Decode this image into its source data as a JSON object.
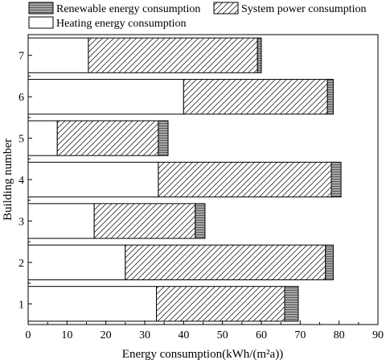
{
  "chart_data": {
    "type": "bar",
    "orientation": "horizontal",
    "stacked": true,
    "xlabel": "Energy consumption(kWh/(m²a))",
    "ylabel": "Building number",
    "xlim": [
      0,
      90
    ],
    "x_ticks": [
      0,
      10,
      20,
      30,
      40,
      50,
      60,
      70,
      80,
      90
    ],
    "categories": [
      "1",
      "2",
      "3",
      "4",
      "5",
      "6",
      "7"
    ],
    "series": [
      {
        "name": "Heating energy consumption",
        "pattern": "solid",
        "color": "#ffffff",
        "values": [
          33,
          25,
          17,
          33.5,
          7.5,
          40,
          15.5
        ]
      },
      {
        "name": "System power consumption",
        "pattern": "diagonal-hatch",
        "color": "#ffffff",
        "values": [
          33,
          51.5,
          26,
          44.5,
          26,
          37,
          43.5
        ]
      },
      {
        "name": "Renewable energy consumption",
        "pattern": "horizontal-lines",
        "color": "#a0a0a0",
        "values": [
          3.5,
          2,
          2.5,
          2.5,
          2.5,
          1.5,
          1
        ]
      }
    ],
    "legend": {
      "placement": "top",
      "entries": [
        "Renewable energy consumption",
        "System power consumption",
        "Heating energy consumption"
      ]
    },
    "grid": false
  }
}
